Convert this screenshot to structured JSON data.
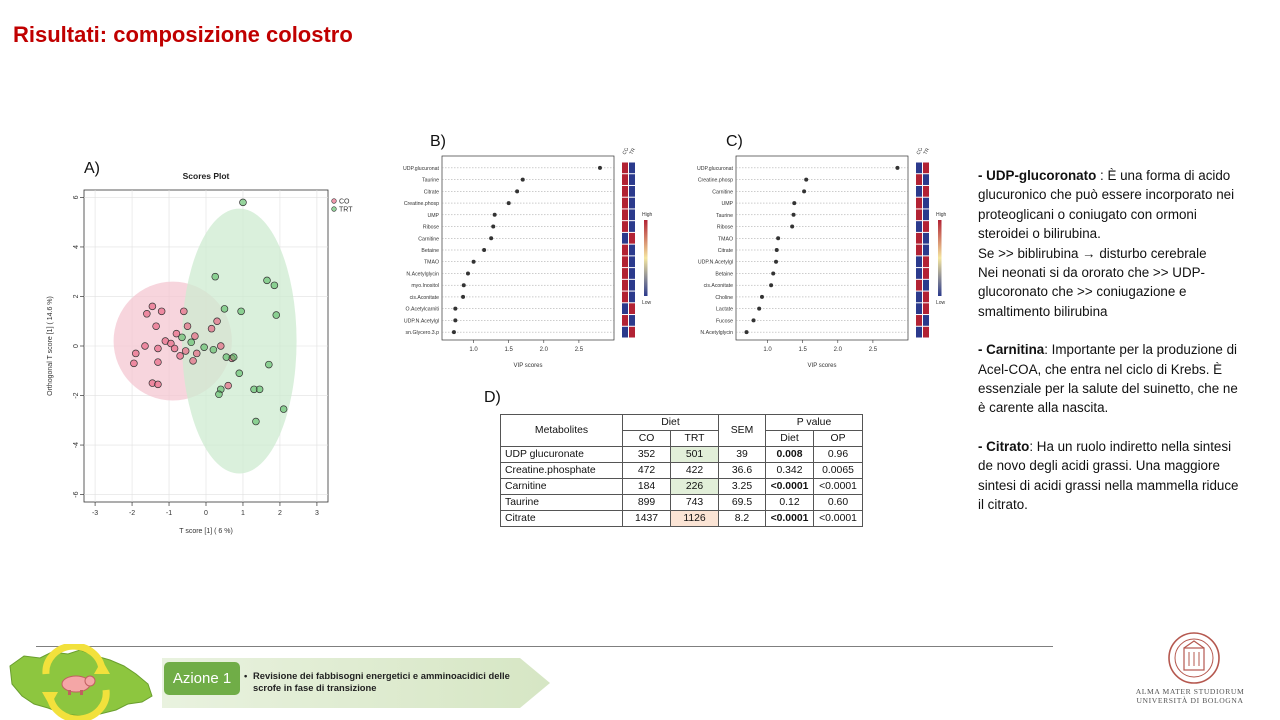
{
  "slide": {
    "title": "Risultati: composizione colostro"
  },
  "panels": {
    "a": "A)",
    "b": "B)",
    "c": "C)",
    "d": "D)"
  },
  "colors": {
    "title": "#c00000",
    "co": "#e8617f",
    "trt": "#5fbf6a",
    "co_ellipse": "#f4c7d2",
    "trt_ellipse": "#cdebd0",
    "azione": "#70ad47"
  },
  "chart_data": [
    {
      "id": "scores-plot",
      "type": "scatter",
      "title": "Scores Plot",
      "xlabel": "T score [1] ( 6 %)",
      "ylabel": "Orthogonal T score [1] ( 14.6 %)",
      "xlim": [
        -3.3,
        3.3
      ],
      "ylim": [
        -6.3,
        6.3
      ],
      "xticks": [
        "-3",
        "-2",
        "-1",
        "0",
        "1",
        "2",
        "3"
      ],
      "yticks": [
        "6",
        "4",
        "2",
        "0",
        "-2",
        "-4",
        "-6"
      ],
      "legend": {
        "position": "top-right",
        "entries": [
          "CO",
          "TRT"
        ]
      },
      "ellipses": [
        {
          "series": "CO",
          "cx": -0.9,
          "cy": 0.2,
          "rx": 1.6,
          "ry": 2.4
        },
        {
          "series": "TRT",
          "cx": 0.9,
          "cy": 0.2,
          "rx": 1.55,
          "ry": 5.35
        }
      ],
      "series": [
        {
          "name": "CO",
          "points": [
            [
              -1.6,
              1.3
            ],
            [
              -1.45,
              1.6
            ],
            [
              -1.2,
              1.4
            ],
            [
              -1.35,
              0.8
            ],
            [
              -1.9,
              -0.3
            ],
            [
              -1.95,
              -0.7
            ],
            [
              -1.65,
              0.0
            ],
            [
              -1.3,
              -0.1
            ],
            [
              -1.1,
              0.2
            ],
            [
              -0.95,
              0.1
            ],
            [
              -1.3,
              -0.65
            ],
            [
              -1.45,
              -1.5
            ],
            [
              -1.3,
              -1.55
            ],
            [
              -0.85,
              -0.1
            ],
            [
              -0.7,
              -0.4
            ],
            [
              -0.6,
              1.4
            ],
            [
              -0.5,
              0.8
            ],
            [
              -0.3,
              0.4
            ],
            [
              -0.8,
              0.5
            ],
            [
              -0.55,
              -0.2
            ],
            [
              -0.35,
              -0.6
            ],
            [
              0.15,
              0.7
            ],
            [
              0.3,
              1.0
            ],
            [
              0.4,
              0.0
            ],
            [
              0.7,
              -0.5
            ],
            [
              -0.25,
              -0.3
            ],
            [
              0.6,
              -1.6
            ]
          ]
        },
        {
          "name": "TRT",
          "points": [
            [
              1.0,
              5.8
            ],
            [
              0.25,
              2.8
            ],
            [
              1.65,
              2.65
            ],
            [
              1.85,
              2.45
            ],
            [
              1.9,
              1.25
            ],
            [
              0.5,
              1.5
            ],
            [
              0.95,
              1.4
            ],
            [
              -0.65,
              0.35
            ],
            [
              -0.4,
              0.15
            ],
            [
              -0.05,
              -0.05
            ],
            [
              0.2,
              -0.15
            ],
            [
              0.55,
              -0.45
            ],
            [
              0.75,
              -0.45
            ],
            [
              0.4,
              -1.75
            ],
            [
              0.35,
              -1.95
            ],
            [
              0.9,
              -1.1
            ],
            [
              1.3,
              -1.75
            ],
            [
              1.45,
              -1.75
            ],
            [
              1.7,
              -0.75
            ],
            [
              2.1,
              -2.55
            ],
            [
              1.35,
              -3.05
            ]
          ]
        }
      ]
    },
    {
      "id": "vip-b",
      "type": "scatter",
      "title": "",
      "xlabel": "VIP scores",
      "xlim": [
        0.55,
        3.0
      ],
      "xticks": [
        "1.0",
        "1.5",
        "2.0",
        "2.5"
      ],
      "xtick_values": [
        1.0,
        1.5,
        2.0,
        2.5
      ],
      "heat_labels": [
        "CO",
        "TRT"
      ],
      "scale_labels": [
        "High",
        "Low"
      ],
      "items": [
        {
          "name": "UDP.glucuronat",
          "vip": 2.8,
          "co": "red",
          "trt": "blue"
        },
        {
          "name": "Taurine",
          "vip": 1.7,
          "co": "red",
          "trt": "blue"
        },
        {
          "name": "Citrate",
          "vip": 1.62,
          "co": "red",
          "trt": "blue"
        },
        {
          "name": "Creatine.phosp",
          "vip": 1.5,
          "co": "red",
          "trt": "blue"
        },
        {
          "name": "UMP",
          "vip": 1.3,
          "co": "red",
          "trt": "blue"
        },
        {
          "name": "Ribose",
          "vip": 1.28,
          "co": "red",
          "trt": "blue"
        },
        {
          "name": "Carnitine",
          "vip": 1.25,
          "co": "blue",
          "trt": "red"
        },
        {
          "name": "Betaine",
          "vip": 1.15,
          "co": "red",
          "trt": "blue"
        },
        {
          "name": "TMAO",
          "vip": 1.0,
          "co": "red",
          "trt": "blue"
        },
        {
          "name": "N.Acetylglycin",
          "vip": 0.92,
          "co": "red",
          "trt": "blue"
        },
        {
          "name": "myo.Inositol",
          "vip": 0.86,
          "co": "red",
          "trt": "blue"
        },
        {
          "name": "cis.Aconitate",
          "vip": 0.85,
          "co": "red",
          "trt": "blue"
        },
        {
          "name": "O.Acetylcarniti",
          "vip": 0.74,
          "co": "blue",
          "trt": "red"
        },
        {
          "name": "UDP.N.Acetylgl",
          "vip": 0.74,
          "co": "red",
          "trt": "blue"
        },
        {
          "name": "sn.Glycero.3.p",
          "vip": 0.72,
          "co": "blue",
          "trt": "red"
        }
      ]
    },
    {
      "id": "vip-c",
      "type": "scatter",
      "title": "",
      "xlabel": "VIP scores",
      "xlim": [
        0.55,
        3.0
      ],
      "xticks": [
        "1.0",
        "1.5",
        "2.0",
        "2.5"
      ],
      "xtick_values": [
        1.0,
        1.5,
        2.0,
        2.5
      ],
      "heat_labels": [
        "CO",
        "TRT"
      ],
      "scale_labels": [
        "High",
        "Low"
      ],
      "items": [
        {
          "name": "UDP.glucuronat",
          "vip": 2.85,
          "co": "blue",
          "trt": "red"
        },
        {
          "name": "Creatine.phosp",
          "vip": 1.55,
          "co": "red",
          "trt": "blue"
        },
        {
          "name": "Carnitine",
          "vip": 1.52,
          "co": "blue",
          "trt": "red"
        },
        {
          "name": "UMP",
          "vip": 1.38,
          "co": "red",
          "trt": "blue"
        },
        {
          "name": "Taurine",
          "vip": 1.37,
          "co": "red",
          "trt": "blue"
        },
        {
          "name": "Ribose",
          "vip": 1.35,
          "co": "blue",
          "trt": "red"
        },
        {
          "name": "TMAO",
          "vip": 1.15,
          "co": "red",
          "trt": "blue"
        },
        {
          "name": "Citrate",
          "vip": 1.13,
          "co": "red",
          "trt": "blue"
        },
        {
          "name": "UDP.N.Acetylgl",
          "vip": 1.12,
          "co": "blue",
          "trt": "red"
        },
        {
          "name": "Betaine",
          "vip": 1.08,
          "co": "blue",
          "trt": "red"
        },
        {
          "name": "cis.Aconitate",
          "vip": 1.05,
          "co": "red",
          "trt": "blue"
        },
        {
          "name": "Choline",
          "vip": 0.92,
          "co": "blue",
          "trt": "red"
        },
        {
          "name": "Lactate",
          "vip": 0.88,
          "co": "blue",
          "trt": "red"
        },
        {
          "name": "Fucose",
          "vip": 0.8,
          "co": "red",
          "trt": "blue"
        },
        {
          "name": "N.Acetylglycin",
          "vip": 0.7,
          "co": "blue",
          "trt": "red"
        }
      ]
    },
    {
      "id": "table-d",
      "type": "table",
      "headers": {
        "metabolites": "Metabolites",
        "diet": "Diet",
        "co": "CO",
        "trt": "TRT",
        "sem": "SEM",
        "pvalue": "P value",
        "p_diet": "Diet",
        "p_op": "OP"
      },
      "rows": [
        {
          "metabolite": "UDP glucuronate",
          "co": "352",
          "trt": "501",
          "sem": "39",
          "diet": "0.008",
          "op": "0.96"
        },
        {
          "metabolite": "Creatine.phosphate",
          "co": "472",
          "trt": "422",
          "sem": "36.6",
          "diet": "0.342",
          "op": "0.0065"
        },
        {
          "metabolite": "Carnitine",
          "co": "184",
          "trt": "226",
          "sem": "3.25",
          "diet": "<0.0001",
          "op": "<0.0001"
        },
        {
          "metabolite": "Taurine",
          "co": "899",
          "trt": "743",
          "sem": "69.5",
          "diet": "0.12",
          "op": "0.60"
        },
        {
          "metabolite": "Citrate",
          "co": "1437",
          "trt": "1126",
          "sem": "8.2",
          "diet": "<0.0001",
          "op": "<0.0001"
        }
      ]
    }
  ],
  "notes": {
    "udp_title": "- UDP-glucoronato",
    "udp_text": " : È una forma di acido glucuronico che può essere incorporato nei proteoglicani o coniugato con ormoni steroidei o bilirubina.",
    "udp_line2_a": "Se >> biblirubina ",
    "udp_line2_arrow": "→",
    "udp_line2_b": " disturbo cerebrale",
    "udp_line3": "Nei neonati si da ororato  che >> UDP-glucoronato che >> coniugazione e smaltimento bilirubina",
    "carn_title": "- Carnitina",
    "carn_text": ": Importante  per la produzione  di Acel-COA, che entra nel ciclo di Krebs. È essenziale per la salute del suinetto, che ne è carente alla nascita.",
    "citr_title": "- Citrato",
    "citr_text": ": Ha un ruolo indiretto nella sintesi de novo degli acidi grassi. Una maggiore sintesi di acidi grassi nella mammella riduce il citrato."
  },
  "footer": {
    "azione_label": "Azione 1",
    "azione_bullet": "•",
    "azione_text": "Revisione dei fabbisogni energetici e amminoacidici delle scrofe in fase di transizione",
    "logo_line1": "ALMA MATER STUDIORUM",
    "logo_line2": "UNIVERSITÀ DI BOLOGNA",
    "icons": [
      "region-map-icon",
      "cycle-arrows-icon",
      "pig-icon",
      "university-seal-icon"
    ]
  }
}
